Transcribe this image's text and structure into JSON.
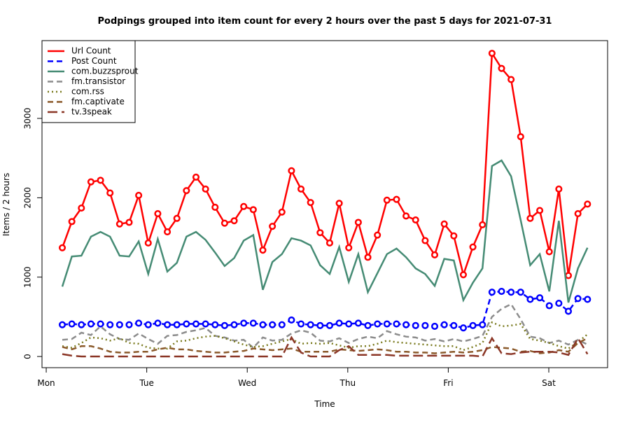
{
  "chart_data": {
    "type": "line",
    "title": "Podpings grouped into item count for every 2 hours  over the past 5 days for 2021-07-31",
    "xlabel": "Time",
    "ylabel": "Items / 2 hours",
    "x": [
      0.16,
      0.255,
      0.35,
      0.445,
      0.54,
      0.635,
      0.73,
      0.825,
      0.92,
      1.015,
      1.11,
      1.205,
      1.3,
      1.395,
      1.49,
      1.585,
      1.68,
      1.775,
      1.87,
      1.965,
      2.06,
      2.155,
      2.25,
      2.345,
      2.44,
      2.535,
      2.63,
      2.725,
      2.82,
      2.915,
      3.01,
      3.105,
      3.2,
      3.295,
      3.39,
      3.485,
      3.58,
      3.675,
      3.77,
      3.865,
      3.96,
      4.055,
      4.15,
      4.245,
      4.34,
      4.435,
      4.53,
      4.625,
      4.72,
      4.815,
      4.91,
      5.005,
      5.1,
      5.195,
      5.29,
      5.385
    ],
    "xlim": [
      -0.042,
      5.585
    ],
    "xticks": [
      {
        "value": 0,
        "label": "Mon"
      },
      {
        "value": 1,
        "label": "Tue"
      },
      {
        "value": 2,
        "label": "Wed"
      },
      {
        "value": 3,
        "label": "Thu"
      },
      {
        "value": 4,
        "label": "Fri"
      },
      {
        "value": 5,
        "label": "Sat"
      }
    ],
    "ylim": [
      -141,
      3980
    ],
    "yticks": [
      0,
      1000,
      2000,
      3000
    ],
    "legend": "top-left",
    "series": [
      {
        "name": "Url Count",
        "color": "#ff0000",
        "dash": "solid",
        "marker": "circle",
        "values": [
          1370,
          1700,
          1870,
          2200,
          2220,
          2060,
          1670,
          1690,
          2030,
          1430,
          1800,
          1570,
          1740,
          2090,
          2260,
          2110,
          1880,
          1680,
          1710,
          1890,
          1850,
          1340,
          1640,
          1820,
          2340,
          2110,
          1940,
          1560,
          1430,
          1930,
          1370,
          1690,
          1250,
          1530,
          1970,
          1980,
          1770,
          1720,
          1460,
          1280,
          1670,
          1520,
          1030,
          1380,
          1660,
          3820,
          3630,
          3490,
          2770,
          1740,
          1840,
          1320,
          2110,
          1020,
          1800,
          1920
        ]
      },
      {
        "name": "Post Count",
        "color": "#0000ff",
        "dash": "dashed",
        "marker": "circle",
        "values": [
          400,
          410,
          400,
          410,
          410,
          400,
          400,
          400,
          420,
          400,
          420,
          400,
          400,
          410,
          410,
          410,
          400,
          390,
          400,
          420,
          420,
          400,
          400,
          400,
          460,
          410,
          400,
          390,
          390,
          420,
          410,
          420,
          390,
          410,
          410,
          410,
          400,
          390,
          390,
          380,
          400,
          390,
          360,
          390,
          400,
          810,
          820,
          810,
          810,
          720,
          740,
          640,
          670,
          570,
          730,
          720
        ]
      },
      {
        "name": "com.buzzsprout",
        "color": "#458b74",
        "dash": "solid",
        "values": [
          880,
          1260,
          1270,
          1510,
          1570,
          1510,
          1270,
          1260,
          1450,
          1040,
          1480,
          1070,
          1180,
          1510,
          1570,
          1470,
          1310,
          1140,
          1240,
          1460,
          1530,
          840,
          1190,
          1290,
          1490,
          1460,
          1400,
          1150,
          1040,
          1380,
          940,
          1290,
          810,
          1050,
          1290,
          1360,
          1250,
          1110,
          1040,
          890,
          1230,
          1210,
          710,
          930,
          1110,
          2400,
          2470,
          2270,
          1720,
          1150,
          1290,
          820,
          1710,
          680,
          1110,
          1370
        ]
      },
      {
        "name": "fm.transistor",
        "color": "#8c8c8c",
        "dash": "dashed",
        "values": [
          210,
          220,
          300,
          270,
          380,
          280,
          220,
          210,
          290,
          220,
          160,
          260,
          270,
          310,
          330,
          360,
          260,
          240,
          200,
          210,
          110,
          240,
          200,
          210,
          290,
          330,
          300,
          200,
          190,
          230,
          170,
          220,
          250,
          230,
          320,
          280,
          250,
          240,
          200,
          220,
          190,
          220,
          190,
          220,
          260,
          500,
          600,
          660,
          470,
          250,
          230,
          170,
          200,
          150,
          210,
          150
        ]
      },
      {
        "name": "com.rss",
        "color": "#7a7a1e",
        "dash": "dotted",
        "values": [
          130,
          110,
          170,
          240,
          230,
          200,
          230,
          170,
          160,
          110,
          100,
          100,
          190,
          200,
          230,
          250,
          260,
          230,
          190,
          150,
          120,
          130,
          160,
          190,
          220,
          160,
          170,
          160,
          170,
          140,
          110,
          130,
          130,
          160,
          200,
          180,
          170,
          160,
          150,
          140,
          130,
          130,
          80,
          120,
          170,
          430,
          380,
          390,
          410,
          220,
          200,
          170,
          130,
          100,
          180,
          280
        ]
      },
      {
        "name": "fm.captivate",
        "color": "#8b5a2b",
        "dash": "dashed",
        "values": [
          120,
          90,
          130,
          130,
          100,
          60,
          50,
          50,
          60,
          60,
          90,
          110,
          90,
          90,
          70,
          60,
          50,
          50,
          60,
          70,
          100,
          90,
          80,
          90,
          100,
          60,
          60,
          60,
          60,
          90,
          80,
          70,
          80,
          90,
          80,
          60,
          60,
          50,
          50,
          40,
          50,
          60,
          50,
          60,
          80,
          120,
          110,
          100,
          60,
          70,
          40,
          50,
          80,
          60,
          170,
          230
        ]
      },
      {
        "name": "tv.3speak",
        "color": "#8b3626",
        "dash": "longdash",
        "values": [
          30,
          10,
          0,
          0,
          0,
          0,
          0,
          0,
          0,
          0,
          0,
          0,
          0,
          0,
          0,
          0,
          0,
          0,
          0,
          0,
          0,
          0,
          0,
          0,
          240,
          50,
          0,
          0,
          0,
          80,
          130,
          20,
          20,
          20,
          20,
          10,
          10,
          10,
          10,
          10,
          10,
          10,
          10,
          10,
          0,
          230,
          40,
          30,
          50,
          60,
          60,
          60,
          50,
          20,
          230,
          30
        ]
      }
    ]
  }
}
